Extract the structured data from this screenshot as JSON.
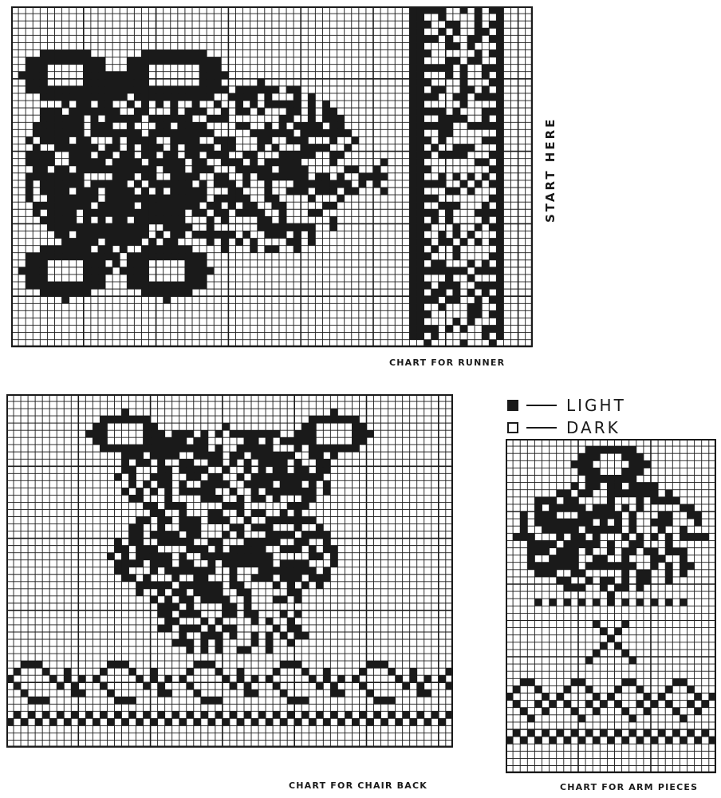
{
  "runner": {
    "caption": "CHART FOR RUNNER",
    "side_label": "START HERE"
  },
  "chair_back": {
    "caption": "CHART FOR CHAIR BACK"
  },
  "arm_pieces": {
    "caption": "CHART FOR ARM PIECES"
  },
  "legend": {
    "items": [
      {
        "label": "LIGHT",
        "swatch": "filled-square"
      },
      {
        "label": "DARK",
        "swatch": "empty-square"
      }
    ]
  },
  "colors": {
    "ink": "#1a1a1a",
    "paper": "#ffffff"
  }
}
